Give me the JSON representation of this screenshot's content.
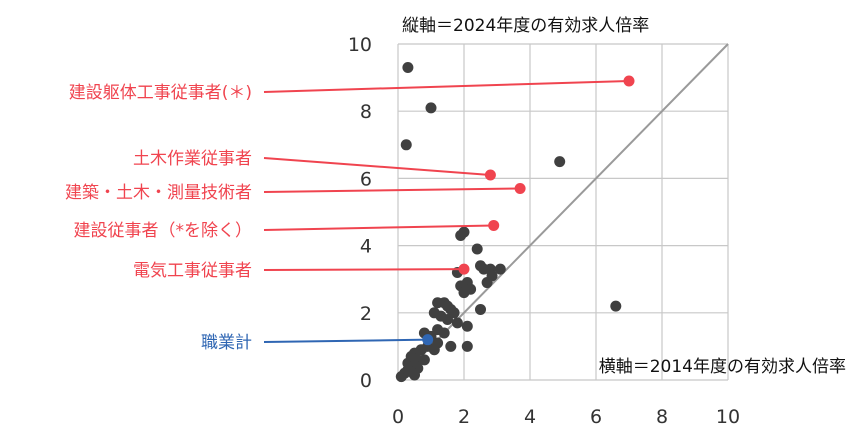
{
  "chart_data": {
    "type": "scatter",
    "y_axis_label": "縦軸＝2024年度の有効求人倍率",
    "x_axis_label": "横軸＝2014年度の有効求人倍率",
    "xlim": [
      0,
      10
    ],
    "ylim": [
      0,
      10
    ],
    "x_ticks": [
      "0",
      "2",
      "4",
      "6",
      "8",
      "10"
    ],
    "y_ticks": [
      "0",
      "2",
      "4",
      "6",
      "8",
      "10"
    ],
    "grid": true,
    "reference_line": "y = x",
    "colors": {
      "points": "#404040",
      "highlight": "#f0444f",
      "total": "#2f66b3",
      "grid": "#c8c8c8",
      "diagonal": "#9a9a9a"
    },
    "highlighted": [
      {
        "label": "建設躯体工事従事者(＊)",
        "x": 7.0,
        "y": 8.9
      },
      {
        "label": "土木作業従事者",
        "x": 2.8,
        "y": 6.1
      },
      {
        "label": "建築・土木・測量技術者",
        "x": 3.7,
        "y": 5.7
      },
      {
        "label": "建設従事者（*を除く）",
        "x": 2.9,
        "y": 4.6
      },
      {
        "label": "電気工事従事者",
        "x": 2.0,
        "y": 3.3
      },
      {
        "label": "職業計",
        "x": 0.9,
        "y": 1.2
      }
    ],
    "points": [
      {
        "x": 0.3,
        "y": 9.3
      },
      {
        "x": 1.0,
        "y": 8.1
      },
      {
        "x": 0.25,
        "y": 7.0
      },
      {
        "x": 4.9,
        "y": 6.5
      },
      {
        "x": 6.6,
        "y": 2.2
      },
      {
        "x": 1.9,
        "y": 4.3
      },
      {
        "x": 2.0,
        "y": 4.4
      },
      {
        "x": 2.4,
        "y": 3.9
      },
      {
        "x": 2.5,
        "y": 3.4
      },
      {
        "x": 2.6,
        "y": 3.3
      },
      {
        "x": 2.8,
        "y": 3.3
      },
      {
        "x": 3.1,
        "y": 3.3
      },
      {
        "x": 2.85,
        "y": 3.1
      },
      {
        "x": 2.7,
        "y": 2.9
      },
      {
        "x": 1.8,
        "y": 3.2
      },
      {
        "x": 1.9,
        "y": 2.8
      },
      {
        "x": 2.1,
        "y": 2.9
      },
      {
        "x": 2.2,
        "y": 2.7
      },
      {
        "x": 2.0,
        "y": 2.6
      },
      {
        "x": 2.5,
        "y": 2.1
      },
      {
        "x": 1.2,
        "y": 2.3
      },
      {
        "x": 1.4,
        "y": 2.3
      },
      {
        "x": 1.5,
        "y": 2.2
      },
      {
        "x": 1.6,
        "y": 2.1
      },
      {
        "x": 1.7,
        "y": 2.0
      },
      {
        "x": 1.1,
        "y": 2.0
      },
      {
        "x": 1.3,
        "y": 1.9
      },
      {
        "x": 1.5,
        "y": 1.8
      },
      {
        "x": 1.8,
        "y": 1.7
      },
      {
        "x": 2.1,
        "y": 1.6
      },
      {
        "x": 1.2,
        "y": 1.5
      },
      {
        "x": 1.4,
        "y": 1.4
      },
      {
        "x": 1.0,
        "y": 1.3
      },
      {
        "x": 0.8,
        "y": 1.4
      },
      {
        "x": 1.2,
        "y": 1.1
      },
      {
        "x": 1.6,
        "y": 1.0
      },
      {
        "x": 0.9,
        "y": 1.0
      },
      {
        "x": 0.7,
        "y": 0.9
      },
      {
        "x": 2.1,
        "y": 1.0
      },
      {
        "x": 1.1,
        "y": 0.9
      },
      {
        "x": 0.5,
        "y": 0.8
      },
      {
        "x": 0.4,
        "y": 0.7
      },
      {
        "x": 0.6,
        "y": 0.6
      },
      {
        "x": 0.8,
        "y": 0.6
      },
      {
        "x": 0.3,
        "y": 0.5
      },
      {
        "x": 0.5,
        "y": 0.45
      },
      {
        "x": 0.6,
        "y": 0.35
      },
      {
        "x": 0.4,
        "y": 0.25
      },
      {
        "x": 0.2,
        "y": 0.2
      },
      {
        "x": 0.1,
        "y": 0.1
      },
      {
        "x": 0.5,
        "y": 0.15
      },
      {
        "x": 0.3,
        "y": 0.3
      }
    ]
  }
}
